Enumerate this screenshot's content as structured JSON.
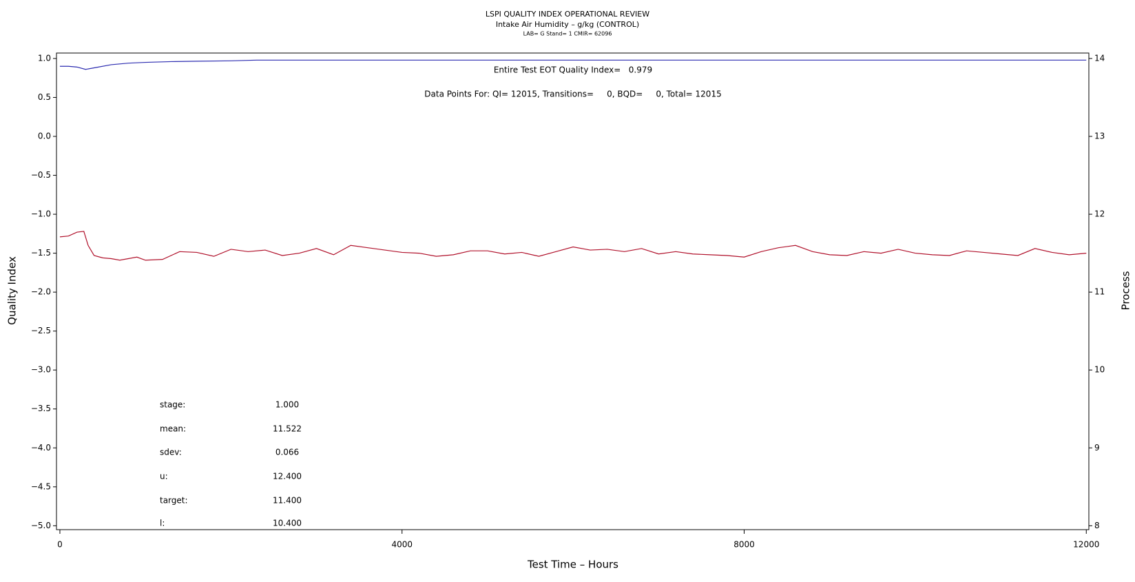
{
  "chart_data": {
    "type": "line",
    "title": "LSPI QUALITY INDEX OPERATIONAL REVIEW",
    "subtitle": "Intake Air Humidity – g/kg (CONTROL)",
    "subtitle2": "LAB= G Stand= 1 CMIR= 62096",
    "annotations": [
      "Entire Test EOT Quality Index=   0.979",
      "Data Points For: QI= 12015, Transitions=     0, BQD=     0, Total= 12015"
    ],
    "stats": [
      {
        "label": "stage:",
        "value": "1.000"
      },
      {
        "label": "mean:",
        "value": "11.522"
      },
      {
        "label": "sdev:",
        "value": "0.066"
      },
      {
        "label": "u:",
        "value": "12.400"
      },
      {
        "label": "target:",
        "value": "11.400"
      },
      {
        "label": "l:",
        "value": "10.400"
      }
    ],
    "xlabel": "Test Time – Hours",
    "ylabel": "Quality Index",
    "y2label": "Process",
    "xlim": [
      -40,
      12030
    ],
    "xticks": [
      0,
      4000,
      8000,
      12000
    ],
    "ylim": [
      -5.05,
      1.07
    ],
    "yticks": [
      {
        "value": 1,
        "label": "1.0"
      },
      0.5,
      {
        "value": 0,
        "label": "0.0"
      },
      {
        "value": -0.5,
        "label": "−0.5"
      },
      {
        "value": -1,
        "label": "−1.0"
      },
      {
        "value": -1.5,
        "label": "−1.5"
      },
      {
        "value": -2,
        "label": "−2.0"
      },
      {
        "value": -2.5,
        "label": "−2.5"
      },
      {
        "value": -3,
        "label": "−3.0"
      },
      {
        "value": -3.5,
        "label": "−3.5"
      },
      {
        "value": -4,
        "label": "−4.0"
      },
      {
        "value": -4.5,
        "label": "−4.5"
      },
      {
        "value": -5,
        "label": "−5.0"
      }
    ],
    "y2lim": [
      7.95,
      14.07
    ],
    "y2ticks": [
      8,
      9,
      10,
      11,
      12,
      13,
      14
    ],
    "series": [
      {
        "name": "Quality Index",
        "color": "#2b2bb0",
        "x": [
          0,
          100,
          200,
          300,
          400,
          600,
          800,
          1000,
          1300,
          1600,
          2000,
          2300,
          3000,
          12000
        ],
        "values": [
          0.9,
          0.9,
          0.89,
          0.86,
          0.88,
          0.92,
          0.94,
          0.95,
          0.96,
          0.965,
          0.97,
          0.979,
          0.979,
          0.979
        ]
      },
      {
        "name": "Process",
        "color": "#b0102a",
        "axis": "y2",
        "x": [
          0,
          100,
          200,
          280,
          330,
          400,
          500,
          600,
          700,
          800,
          900,
          1000,
          1200,
          1400,
          1600,
          1800,
          2000,
          2200,
          2400,
          2600,
          2800,
          3000,
          3200,
          3400,
          3600,
          3800,
          4000,
          4200,
          4400,
          4600,
          4800,
          5000,
          5200,
          5400,
          5600,
          5800,
          6000,
          6200,
          6400,
          6600,
          6800,
          7000,
          7200,
          7400,
          7600,
          7800,
          8000,
          8200,
          8400,
          8600,
          8800,
          9000,
          9200,
          9400,
          9600,
          9800,
          10000,
          10200,
          10400,
          10600,
          10800,
          11000,
          11200,
          11400,
          11600,
          11800,
          12000
        ],
        "values": [
          11.71,
          11.72,
          11.77,
          11.78,
          11.6,
          11.47,
          11.44,
          11.43,
          11.41,
          11.43,
          11.45,
          11.41,
          11.42,
          11.52,
          11.51,
          11.46,
          11.55,
          11.52,
          11.54,
          11.47,
          11.5,
          11.56,
          11.48,
          11.6,
          11.57,
          11.54,
          11.51,
          11.5,
          11.46,
          11.48,
          11.53,
          11.53,
          11.49,
          11.51,
          11.46,
          11.52,
          11.58,
          11.54,
          11.55,
          11.52,
          11.56,
          11.49,
          11.52,
          11.49,
          11.48,
          11.47,
          11.45,
          11.52,
          11.57,
          11.6,
          11.52,
          11.48,
          11.47,
          11.52,
          11.5,
          11.55,
          11.5,
          11.48,
          11.47,
          11.53,
          11.51,
          11.49,
          11.47,
          11.56,
          11.51,
          11.48,
          11.5
        ]
      }
    ]
  }
}
